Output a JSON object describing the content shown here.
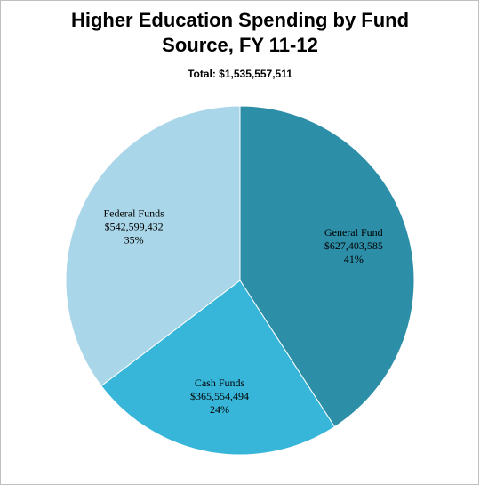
{
  "chart_data": {
    "type": "pie",
    "title": [
      "Higher Education Spending by Fund",
      "Source, FY 11-12"
    ],
    "subtitle": "Total: $1,535,557,511",
    "categories": [
      "General Fund",
      "Cash Funds",
      "Federal Funds"
    ],
    "values": [
      627403585,
      365554494,
      542599432
    ],
    "value_labels": [
      "$627,403,585",
      "$365,554,494",
      "$542,599,432"
    ],
    "percent_labels": [
      "41%",
      "24%",
      "35%"
    ],
    "colors": [
      "#2d8ea8",
      "#38b6da",
      "#a9d6e8"
    ]
  }
}
